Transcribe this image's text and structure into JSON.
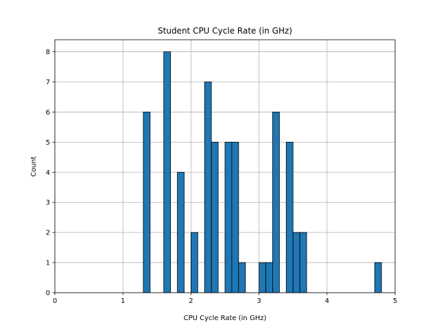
{
  "chart_data": {
    "type": "bar",
    "title": "Student CPU Cycle Rate (in GHz)",
    "xlabel": "CPU Cycle Rate (in GHz)",
    "ylabel": "Count",
    "xlim": [
      0,
      5
    ],
    "ylim": [
      0,
      8.4
    ],
    "xticks": [
      0,
      1,
      2,
      3,
      4,
      5
    ],
    "yticks": [
      0,
      1,
      2,
      3,
      4,
      5,
      6,
      7,
      8
    ],
    "grid": true,
    "bar_color": "#1f77b4",
    "edge_color": "#000000",
    "bins": [
      {
        "start": 1.3,
        "end": 1.4,
        "count": 6
      },
      {
        "start": 1.6,
        "end": 1.7,
        "count": 8
      },
      {
        "start": 1.8,
        "end": 1.9,
        "count": 4
      },
      {
        "start": 2.0,
        "end": 2.1,
        "count": 2
      },
      {
        "start": 2.2,
        "end": 2.3,
        "count": 7
      },
      {
        "start": 2.3,
        "end": 2.4,
        "count": 5
      },
      {
        "start": 2.5,
        "end": 2.6,
        "count": 5
      },
      {
        "start": 2.6,
        "end": 2.7,
        "count": 5
      },
      {
        "start": 2.7,
        "end": 2.8,
        "count": 1
      },
      {
        "start": 3.0,
        "end": 3.1,
        "count": 1
      },
      {
        "start": 3.1,
        "end": 3.2,
        "count": 1
      },
      {
        "start": 3.2,
        "end": 3.3,
        "count": 6
      },
      {
        "start": 3.4,
        "end": 3.5,
        "count": 5
      },
      {
        "start": 3.5,
        "end": 3.6,
        "count": 2
      },
      {
        "start": 3.6,
        "end": 3.7,
        "count": 2
      },
      {
        "start": 4.7,
        "end": 4.8,
        "count": 1
      }
    ]
  }
}
